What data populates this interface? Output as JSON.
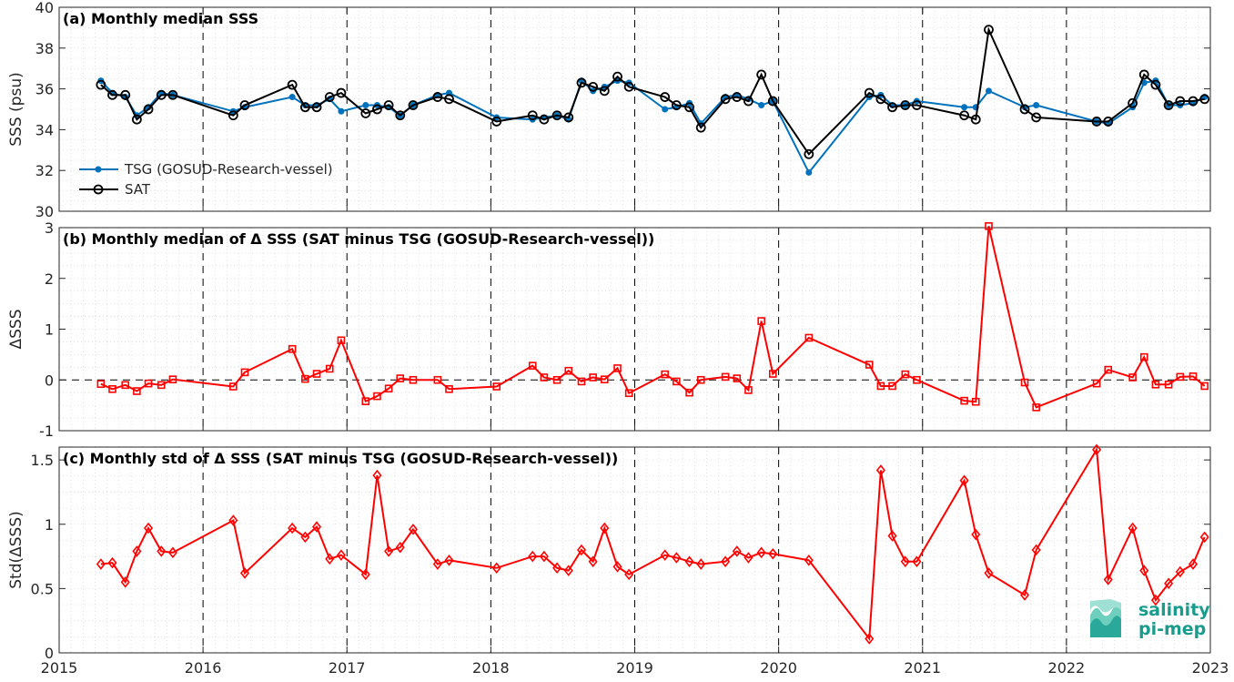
{
  "chart_data": [
    {
      "type": "line",
      "title": "(a) Monthly median SSS",
      "ylabel": "SSS (psu)",
      "xlim": [
        2015,
        2023
      ],
      "ylim": [
        30,
        40
      ],
      "yticks": [
        30,
        32,
        34,
        36,
        38,
        40
      ],
      "grid": true,
      "legend": "left-bottom",
      "series": [
        {
          "name": "TSG (GOSUD-Research-vessel)",
          "color": "#0072BD",
          "marker": "dot",
          "x": [
            2015.29,
            2015.37,
            2015.46,
            2015.54,
            2015.62,
            2015.71,
            2015.79,
            2016.21,
            2016.29,
            2016.62,
            2016.71,
            2016.79,
            2016.88,
            2016.96,
            2017.13,
            2017.21,
            2017.29,
            2017.37,
            2017.46,
            2017.63,
            2017.71,
            2018.04,
            2018.29,
            2018.37,
            2018.46,
            2018.54,
            2018.63,
            2018.71,
            2018.79,
            2018.88,
            2018.96,
            2019.21,
            2019.29,
            2019.38,
            2019.46,
            2019.63,
            2019.71,
            2019.79,
            2019.88,
            2019.96,
            2020.21,
            2020.63,
            2020.71,
            2020.79,
            2020.88,
            2020.96,
            2021.29,
            2021.37,
            2021.46,
            2021.71,
            2021.79,
            2022.21,
            2022.29,
            2022.46,
            2022.54,
            2022.62,
            2022.71,
            2022.79,
            2022.88,
            2022.96
          ],
          "values": [
            36.4,
            35.8,
            35.6,
            34.7,
            35.1,
            35.8,
            35.7,
            34.9,
            35.1,
            35.6,
            35.2,
            35.2,
            35.5,
            34.9,
            35.2,
            35.2,
            35.1,
            34.7,
            35.2,
            35.7,
            35.8,
            34.6,
            34.5,
            34.6,
            34.7,
            34.5,
            36.4,
            35.9,
            36.1,
            36.4,
            36.3,
            35.0,
            35.1,
            35.3,
            34.3,
            35.6,
            35.7,
            35.5,
            35.2,
            35.4,
            31.9,
            35.6,
            35.7,
            35.2,
            35.2,
            35.4,
            35.1,
            35.1,
            35.9,
            35.1,
            35.2,
            34.4,
            34.3,
            35.1,
            36.3,
            36.4,
            35.2,
            35.2,
            35.3,
            35.6
          ]
        },
        {
          "name": "SAT",
          "color": "#000000",
          "marker": "circle",
          "x": [
            2015.29,
            2015.37,
            2015.46,
            2015.54,
            2015.62,
            2015.71,
            2015.79,
            2016.21,
            2016.29,
            2016.62,
            2016.71,
            2016.79,
            2016.88,
            2016.96,
            2017.13,
            2017.21,
            2017.29,
            2017.37,
            2017.46,
            2017.63,
            2017.71,
            2018.04,
            2018.29,
            2018.37,
            2018.46,
            2018.54,
            2018.63,
            2018.71,
            2018.79,
            2018.88,
            2018.96,
            2019.21,
            2019.29,
            2019.38,
            2019.46,
            2019.63,
            2019.71,
            2019.79,
            2019.88,
            2019.96,
            2020.21,
            2020.63,
            2020.71,
            2020.79,
            2020.88,
            2020.96,
            2021.29,
            2021.37,
            2021.46,
            2021.71,
            2021.79,
            2022.21,
            2022.29,
            2022.46,
            2022.54,
            2022.62,
            2022.71,
            2022.79,
            2022.88,
            2022.96
          ],
          "values": [
            36.2,
            35.7,
            35.7,
            34.5,
            35.0,
            35.7,
            35.7,
            34.7,
            35.2,
            36.2,
            35.1,
            35.1,
            35.6,
            35.8,
            34.8,
            35.0,
            35.2,
            34.7,
            35.2,
            35.6,
            35.5,
            34.4,
            34.7,
            34.5,
            34.7,
            34.6,
            36.3,
            36.1,
            35.9,
            36.6,
            36.1,
            35.6,
            35.2,
            35.1,
            34.1,
            35.5,
            35.6,
            35.4,
            36.7,
            35.4,
            32.8,
            35.8,
            35.5,
            35.1,
            35.2,
            35.2,
            34.7,
            34.5,
            38.9,
            35.0,
            34.6,
            34.4,
            34.4,
            35.3,
            36.7,
            36.2,
            35.2,
            35.4,
            35.4,
            35.5
          ]
        }
      ]
    },
    {
      "type": "line",
      "title": "(b) Monthly median of Δ SSS (SAT minus TSG (GOSUD-Research-vessel))",
      "ylabel": "ΔSSS",
      "xlim": [
        2015,
        2023
      ],
      "ylim": [
        -1,
        3
      ],
      "yticks": [
        -1,
        0,
        1,
        2,
        3
      ],
      "zero_line": true,
      "grid": true,
      "series": [
        {
          "color": "#FF0000",
          "marker": "square",
          "x": [
            2015.29,
            2015.37,
            2015.46,
            2015.54,
            2015.62,
            2015.71,
            2015.79,
            2016.21,
            2016.29,
            2016.62,
            2016.71,
            2016.79,
            2016.88,
            2016.96,
            2017.13,
            2017.21,
            2017.29,
            2017.37,
            2017.46,
            2017.63,
            2017.71,
            2018.04,
            2018.29,
            2018.37,
            2018.46,
            2018.54,
            2018.63,
            2018.71,
            2018.79,
            2018.88,
            2018.96,
            2019.21,
            2019.29,
            2019.38,
            2019.46,
            2019.63,
            2019.71,
            2019.79,
            2019.88,
            2019.96,
            2020.21,
            2020.63,
            2020.71,
            2020.79,
            2020.88,
            2020.96,
            2021.29,
            2021.37,
            2021.46,
            2021.71,
            2021.79,
            2022.21,
            2022.29,
            2022.46,
            2022.54,
            2022.62,
            2022.71,
            2022.79,
            2022.88,
            2022.96
          ],
          "values": [
            -0.08,
            -0.18,
            -0.1,
            -0.22,
            -0.07,
            -0.1,
            0.01,
            -0.13,
            0.15,
            0.61,
            0.02,
            0.12,
            0.22,
            0.78,
            -0.42,
            -0.32,
            -0.17,
            0.03,
            0.0,
            0.0,
            -0.18,
            -0.13,
            0.28,
            0.05,
            0.0,
            0.18,
            -0.03,
            0.05,
            0.01,
            0.23,
            -0.26,
            0.11,
            -0.03,
            -0.25,
            0.0,
            0.06,
            0.03,
            -0.2,
            1.16,
            0.12,
            0.83,
            0.3,
            -0.12,
            -0.12,
            0.11,
            0.0,
            -0.41,
            -0.43,
            3.03,
            -0.05,
            -0.54,
            -0.07,
            0.2,
            0.05,
            0.45,
            -0.09,
            -0.09,
            0.06,
            0.07,
            -0.12
          ]
        }
      ]
    },
    {
      "type": "line",
      "title": "(c) Monthly std of Δ SSS (SAT minus TSG (GOSUD-Research-vessel))",
      "ylabel": "Std(ΔSSS)",
      "xlabel": "",
      "xlim": [
        2015,
        2023
      ],
      "ylim": [
        0,
        1.6
      ],
      "yticks": [
        0,
        0.5,
        1,
        1.5
      ],
      "xticks": [
        2015,
        2016,
        2017,
        2018,
        2019,
        2020,
        2021,
        2022,
        2023
      ],
      "grid": true,
      "series": [
        {
          "color": "#FF0000",
          "marker": "diamond",
          "x": [
            2015.29,
            2015.37,
            2015.46,
            2015.54,
            2015.62,
            2015.71,
            2015.79,
            2016.21,
            2016.29,
            2016.62,
            2016.71,
            2016.79,
            2016.88,
            2016.96,
            2017.13,
            2017.21,
            2017.29,
            2017.37,
            2017.46,
            2017.63,
            2017.71,
            2018.04,
            2018.29,
            2018.37,
            2018.46,
            2018.54,
            2018.63,
            2018.71,
            2018.79,
            2018.88,
            2018.96,
            2019.21,
            2019.29,
            2019.38,
            2019.46,
            2019.63,
            2019.71,
            2019.79,
            2019.88,
            2019.96,
            2020.21,
            2020.63,
            2020.71,
            2020.79,
            2020.88,
            2020.96,
            2021.29,
            2021.37,
            2021.46,
            2021.71,
            2021.79,
            2022.21,
            2022.29,
            2022.46,
            2022.54,
            2022.62,
            2022.71,
            2022.79,
            2022.88,
            2022.96
          ],
          "values": [
            0.69,
            0.7,
            0.55,
            0.79,
            0.97,
            0.79,
            0.78,
            1.03,
            0.62,
            0.97,
            0.9,
            0.98,
            0.73,
            0.76,
            0.61,
            1.38,
            0.79,
            0.82,
            0.96,
            0.69,
            0.72,
            0.66,
            0.75,
            0.75,
            0.66,
            0.64,
            0.8,
            0.71,
            0.97,
            0.67,
            0.61,
            0.76,
            0.74,
            0.71,
            0.69,
            0.71,
            0.79,
            0.74,
            0.78,
            0.77,
            0.72,
            0.11,
            1.42,
            0.91,
            0.71,
            0.71,
            1.34,
            0.92,
            0.62,
            0.45,
            0.8,
            1.58,
            0.57,
            0.97,
            0.64,
            0.41,
            0.54,
            0.63,
            0.69,
            0.9
          ]
        }
      ]
    }
  ],
  "logo": {
    "line1": "salinity",
    "line2": "pi-mep"
  }
}
